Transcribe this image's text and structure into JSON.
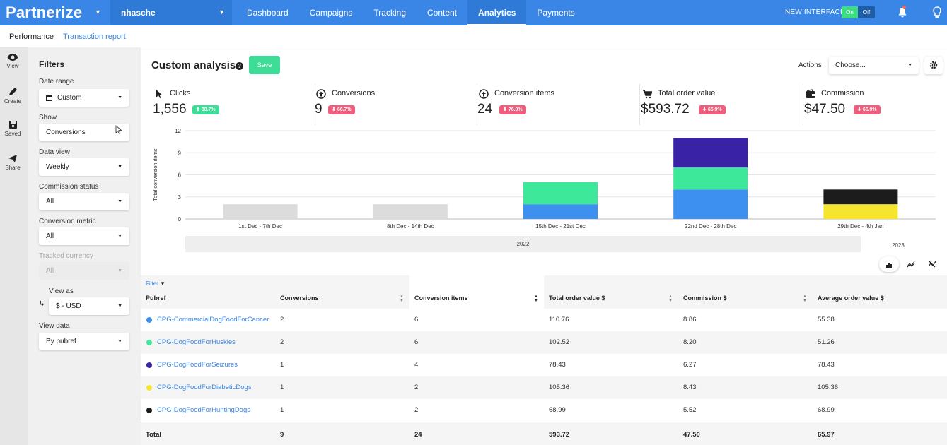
{
  "topbar": {
    "logo": "Partnerize",
    "account": "nhasche",
    "nav": [
      "Dashboard",
      "Campaigns",
      "Tracking",
      "Content",
      "Analytics",
      "Payments"
    ],
    "active_nav": "Analytics",
    "new_interface_label": "NEW INTERFACE",
    "toggle_on": "On",
    "toggle_off": "Off"
  },
  "subtabs": {
    "performance": "Performance",
    "transaction_report": "Transaction report"
  },
  "rail": [
    {
      "label": "View",
      "icon": "eye-icon"
    },
    {
      "label": "Create",
      "icon": "pencil-icon"
    },
    {
      "label": "Saved",
      "icon": "save-icon"
    },
    {
      "label": "Share",
      "icon": "send-icon"
    }
  ],
  "filters": {
    "title": "Filters",
    "date_range": {
      "label": "Date range",
      "value": "Custom"
    },
    "show": {
      "label": "Show",
      "value": "Conversions"
    },
    "data_view": {
      "label": "Data view",
      "value": "Weekly"
    },
    "commission_status": {
      "label": "Commission status",
      "value": "All"
    },
    "conversion_metric": {
      "label": "Conversion metric",
      "value": "All"
    },
    "tracked_currency": {
      "label": "Tracked currency",
      "value": "All"
    },
    "view_as": {
      "label": "View as",
      "value": "$ - USD"
    },
    "view_data": {
      "label": "View data",
      "value": "By pubref"
    }
  },
  "header": {
    "title": "Custom analysis",
    "save": "Save",
    "actions_label": "Actions",
    "actions_placeholder": "Choose..."
  },
  "kpis": [
    {
      "label": "Clicks",
      "value": "1,556",
      "change": "38.7%",
      "dir": "up",
      "icon": "cursor-icon"
    },
    {
      "label": "Conversions",
      "value": "9",
      "change": "66.7%",
      "dir": "down",
      "icon": "circle-arrow-icon"
    },
    {
      "label": "Conversion items",
      "value": "24",
      "change": "76.0%",
      "dir": "down",
      "icon": "circle-arrow-icon"
    },
    {
      "label": "Total order value",
      "value": "$593.72",
      "change": "65.9%",
      "dir": "down",
      "icon": "cart-icon"
    },
    {
      "label": "Commission",
      "value": "$47.50",
      "change": "65.9%",
      "dir": "down",
      "icon": "wallet-icon"
    }
  ],
  "chart_data": {
    "type": "bar",
    "ylabel": "Total conversion items",
    "ylim": [
      0,
      12
    ],
    "yticks": [
      0,
      3,
      6,
      9,
      12
    ],
    "categories": [
      "1st Dec - 7th Dec",
      "8th Dec - 14th Dec",
      "15th Dec - 21st Dec",
      "22nd Dec - 28th Dec",
      "29th Dec - 4th Jan"
    ],
    "years": [
      "2022",
      "2023"
    ],
    "previous_period": [
      2,
      2,
      0,
      0,
      0
    ],
    "series": [
      {
        "name": "CPG-CommercialDogFoodForCancer",
        "color": "#3d8ff0",
        "values": [
          0,
          0,
          2,
          4,
          0
        ]
      },
      {
        "name": "CPG-DogFoodForHuskies",
        "color": "#3ee89a",
        "values": [
          0,
          0,
          3,
          3,
          0
        ]
      },
      {
        "name": "CPG-DogFoodForSeizures",
        "color": "#3a22a6",
        "values": [
          0,
          0,
          0,
          4,
          0
        ]
      },
      {
        "name": "CPG-DogFoodForDiabeticDogs",
        "color": "#f5e52d",
        "values": [
          0,
          0,
          0,
          0,
          2
        ]
      },
      {
        "name": "CPG-DogFoodForHuntingDogs",
        "color": "#1c1c1c",
        "values": [
          0,
          0,
          0,
          0,
          2
        ]
      }
    ]
  },
  "table": {
    "filter_label": "Filter",
    "headers": [
      "Pubref",
      "Conversions",
      "Conversion items",
      "Total order value $",
      "Commission $",
      "Average order value $"
    ],
    "rows": [
      {
        "name": "CPG-CommercialDogFoodForCancer",
        "color": "#3d8ff0",
        "conversions": "2",
        "items": "6",
        "tov": "110.76",
        "commission": "8.86",
        "aov": "55.38"
      },
      {
        "name": "CPG-DogFoodForHuskies",
        "color": "#3ee89a",
        "conversions": "2",
        "items": "6",
        "tov": "102.52",
        "commission": "8.20",
        "aov": "51.26"
      },
      {
        "name": "CPG-DogFoodForSeizures",
        "color": "#3a22a6",
        "conversions": "1",
        "items": "4",
        "tov": "78.43",
        "commission": "6.27",
        "aov": "78.43"
      },
      {
        "name": "CPG-DogFoodForDiabeticDogs",
        "color": "#f5e52d",
        "conversions": "1",
        "items": "2",
        "tov": "105.36",
        "commission": "8.43",
        "aov": "105.36"
      },
      {
        "name": "CPG-DogFoodForHuntingDogs",
        "color": "#1c1c1c",
        "conversions": "1",
        "items": "2",
        "tov": "68.99",
        "commission": "5.52",
        "aov": "68.99"
      }
    ],
    "total": {
      "label": "Total",
      "conversions": "9",
      "items": "24",
      "tov": "593.72",
      "commission": "47.50",
      "aov": "65.97"
    }
  }
}
